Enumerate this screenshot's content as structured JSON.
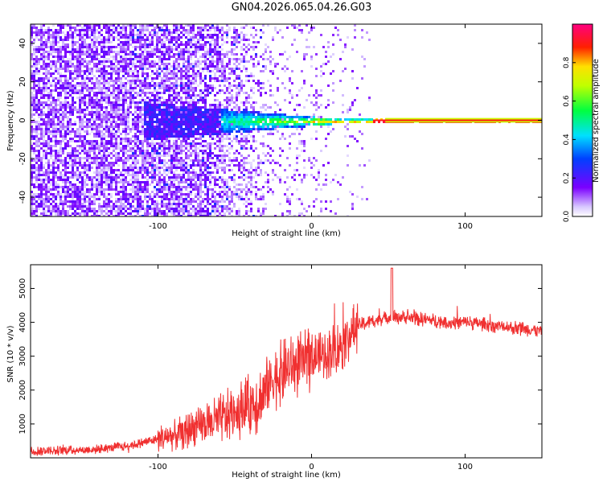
{
  "title": "GN04.2026.065.04.26.G03",
  "colors": {
    "snr_line": "#f03030",
    "spectrogram_low": "#7b00ff",
    "background": "#ffffff",
    "axis": "#000000"
  },
  "chart_data": [
    {
      "type": "heatmap",
      "xlabel": "Height of straight line (km)",
      "ylabel": "Frequency (Hz)",
      "xlim": [
        -183,
        150
      ],
      "ylim": [
        -50,
        50
      ],
      "x_ticks": [
        -100,
        0,
        100
      ],
      "y_ticks": [
        -40,
        -20,
        0,
        20,
        40
      ],
      "grid": false,
      "colorbar": {
        "label": "Normalized spectral amplitude",
        "range": [
          0,
          1
        ],
        "ticks": [
          "0.0",
          "0.2",
          "0.4",
          "0.6",
          "0.8"
        ],
        "colormap": "rainbow (violet to magenta)"
      },
      "features": {
        "noise_region_x": [
          -183,
          -30
        ],
        "carrier_frequency_hz": 0,
        "carrier_starts_x": 20,
        "carrier_spread_hz_at_left": 10
      }
    },
    {
      "type": "line",
      "xlabel": "Height of straight line (km)",
      "ylabel": "SNR (10 * v/v)",
      "xlim": [
        -183,
        150
      ],
      "ylim": [
        0,
        5700
      ],
      "x_ticks": [
        -100,
        0,
        100
      ],
      "y_ticks": [
        1000,
        2000,
        3000,
        4000,
        5000
      ],
      "grid": false,
      "series": [
        {
          "x": [
            -183,
            -160,
            -140,
            -120,
            -100,
            -90,
            -80,
            -70,
            -60,
            -50,
            -40,
            -32,
            -28,
            -25,
            -20,
            -10,
            0,
            10,
            20,
            25,
            30,
            40,
            50,
            60,
            70,
            80,
            90,
            100,
            110,
            120,
            130,
            140,
            150
          ],
          "values": [
            200,
            220,
            250,
            350,
            550,
            650,
            800,
            950,
            1150,
            1350,
            1550,
            1750,
            2300,
            2300,
            2500,
            2700,
            2900,
            3100,
            3350,
            3650,
            3900,
            4050,
            4150,
            4150,
            4100,
            4050,
            4000,
            4000,
            3950,
            3900,
            3850,
            3800,
            3750
          ]
        }
      ]
    }
  ]
}
